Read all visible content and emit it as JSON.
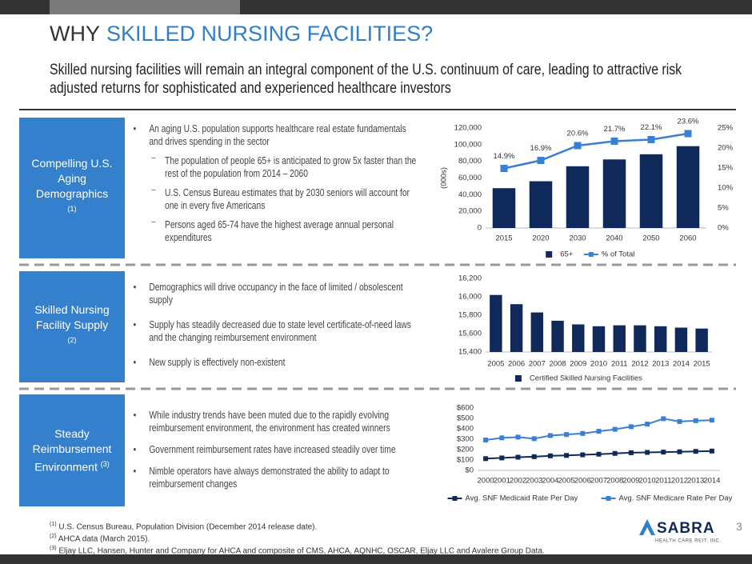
{
  "header": {
    "title_lead": "WHY",
    "title_emphasis": "SKILLED NURSING FACILITIES?",
    "subtitle": "Skilled nursing facilities will remain an integral component of the U.S. continuum of care, leading to attractive risk adjusted returns for sophisticated and experienced healthcare investors"
  },
  "sections": [
    {
      "label": "Compelling U.S. Aging Demographics",
      "note": "(1)",
      "bullets": [
        {
          "text": "An aging U.S. population supports healthcare real estate fundamentals and drives spending in the sector",
          "sub": [
            "The population of people 65+ is anticipated to grow 5x faster than the rest of the population from 2014 – 2060",
            "U.S. Census Bureau estimates that by 2030 seniors will account for one in every five Americans",
            "Persons aged 65-74 have the highest average annual personal expenditures"
          ]
        }
      ]
    },
    {
      "label": "Skilled Nursing Facility Supply",
      "note": "(2)",
      "bullets": [
        "Demographics will drive occupancy in the face of limited / obsolescent supply",
        "Supply has steadily decreased due to state level certificate-of-need laws and the changing reimbursement environment",
        "New supply is effectively non-existent"
      ]
    },
    {
      "label": "Steady Reimbursement Environment",
      "note": "(3)",
      "bullets": [
        "While industry trends have been muted due to the rapidly evolving reimbursement environment, the environment has created winners",
        "Government reimbursement rates have increased steadily over time",
        "Nimble operators have always demonstrated the ability to adapt to reimbursement changes"
      ]
    }
  ],
  "chart_data": [
    {
      "type": "combo",
      "y_label": "(000s)",
      "categories": [
        "2015",
        "2020",
        "2030",
        "2040",
        "2050",
        "2060"
      ],
      "series": [
        {
          "name": "65+",
          "type": "bar",
          "color": "#0f2a5a",
          "values": [
            47800,
            56100,
            74100,
            82300,
            88500,
            98200
          ]
        },
        {
          "name": "% of Total",
          "type": "line",
          "axis": "y2",
          "color": "#3a80d2",
          "values": [
            14.9,
            16.9,
            20.6,
            21.7,
            22.1,
            23.6
          ],
          "value_labels": [
            "14.9%",
            "16.9%",
            "20.6%",
            "21.7%",
            "22.1%",
            "23.6%"
          ]
        }
      ],
      "ylim": [
        0,
        120000
      ],
      "yticks": [
        0,
        {
          "value": 20000,
          "label": "20,000"
        },
        {
          "value": 40000,
          "label": "40,000"
        },
        {
          "value": 60000,
          "label": "60,000"
        },
        {
          "value": 80000,
          "label": "80,000"
        },
        {
          "value": 100000,
          "label": "100,000"
        },
        {
          "value": 120000,
          "label": "120,000"
        }
      ],
      "y2lim": [
        0,
        25
      ],
      "y2ticks": [
        {
          "value": 0,
          "label": "0%"
        },
        {
          "value": 5,
          "label": "5%"
        },
        {
          "value": 10,
          "label": "10%"
        },
        {
          "value": 15,
          "label": "15%"
        },
        {
          "value": 20,
          "label": "20%"
        },
        {
          "value": 25,
          "label": "25%"
        }
      ],
      "legend": "bottom"
    },
    {
      "type": "bar",
      "categories": [
        "2005",
        "2006",
        "2007",
        "2008",
        "2009",
        "2010",
        "2011",
        "2012",
        "2013",
        "2014",
        "2015"
      ],
      "series": [
        {
          "name": "Certified Skilled Nursing Facilities",
          "color": "#0f2a5a",
          "values": [
            16020,
            15920,
            15830,
            15740,
            15700,
            15680,
            15690,
            15690,
            15680,
            15665,
            15655
          ]
        }
      ],
      "ylim": [
        15400,
        16200
      ],
      "yticks": [
        {
          "value": 15400,
          "label": "15,400"
        },
        {
          "value": 15600,
          "label": "15,600"
        },
        {
          "value": 15800,
          "label": "15,800"
        },
        {
          "value": 16000,
          "label": "16,000"
        },
        {
          "value": 16200,
          "label": "16,200"
        }
      ],
      "legend": "bottom"
    },
    {
      "type": "line",
      "categories": [
        "2000",
        "2001",
        "2002",
        "2003",
        "2004",
        "2005",
        "2006",
        "2007",
        "2008",
        "2009",
        "2010",
        "2011",
        "2012",
        "2013",
        "2014"
      ],
      "series": [
        {
          "name": "Avg. SNF Medicaid Rate Per Day",
          "color": "#0f2a5a",
          "values": [
            113,
            120,
            127,
            132,
            140,
            144,
            150,
            156,
            163,
            170,
            173,
            176,
            179,
            183,
            186
          ]
        },
        {
          "name": "Avg. SNF Medicare Rate Per Day",
          "color": "#3a80d2",
          "values": [
            292,
            313,
            320,
            305,
            335,
            345,
            355,
            376,
            395,
            420,
            445,
            497,
            470,
            478,
            483
          ]
        }
      ],
      "ylim": [
        0,
        600
      ],
      "yticks": [
        {
          "value": 0,
          "label": "$0"
        },
        {
          "value": 100,
          "label": "$100"
        },
        {
          "value": 200,
          "label": "$200"
        },
        {
          "value": 300,
          "label": "$300"
        },
        {
          "value": 400,
          "label": "$400"
        },
        {
          "value": 500,
          "label": "$500"
        },
        {
          "value": 600,
          "label": "$600"
        }
      ],
      "legend": "bottom"
    }
  ],
  "footnotes": [
    {
      "mark": "(1)",
      "text": "U.S. Census Bureau, Population Division (December 2014 release date)."
    },
    {
      "mark": "(2)",
      "text": "AHCA data (March 2015)."
    },
    {
      "mark": "(3)",
      "text": "Eljay LLC, Hansen, Hunter and Company for AHCA and composite of CMS, AHCA, AQNHC, OSCAR, Eljay LLC and Avalere Group Data."
    }
  ],
  "logo": {
    "name": "SABRA",
    "tagline": "HEALTH CARE REIT, INC."
  },
  "page_number": "3"
}
